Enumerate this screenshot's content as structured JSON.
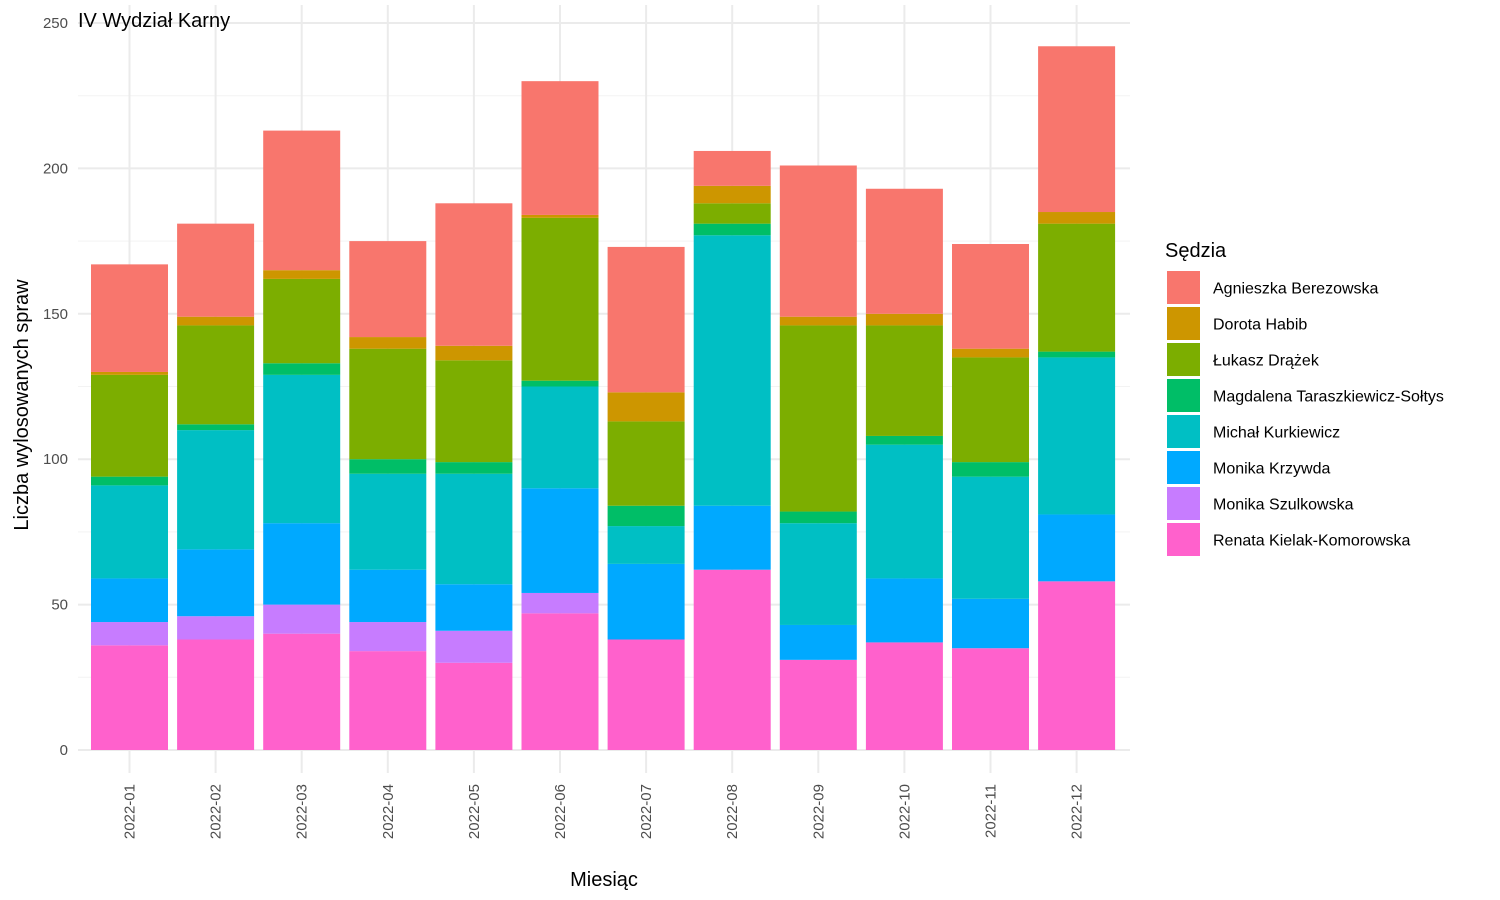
{
  "chart_data": {
    "type": "bar",
    "stacked": true,
    "title": "IV Wydział Karny",
    "xlabel": "Miesiąc",
    "ylabel": "Liczba wylosowanych spraw",
    "ylim": [
      0,
      250
    ],
    "yticks": [
      0,
      50,
      100,
      150,
      200,
      250
    ],
    "grid": true,
    "legend_title": "Sędzia",
    "legend_position": "right",
    "categories": [
      "2022-01",
      "2022-02",
      "2022-03",
      "2022-04",
      "2022-05",
      "2022-06",
      "2022-07",
      "2022-08",
      "2022-09",
      "2022-10",
      "2022-11",
      "2022-12"
    ],
    "series": [
      {
        "name": "Agnieszka Berezowska",
        "color": "#F8766D",
        "values": [
          37,
          32,
          48,
          33,
          49,
          46,
          50,
          12,
          52,
          43,
          36,
          57
        ]
      },
      {
        "name": "Dorota Habib",
        "color": "#CD9600",
        "values": [
          1,
          3,
          3,
          4,
          5,
          1,
          10,
          6,
          3,
          4,
          3,
          4
        ]
      },
      {
        "name": "Łukasz Drążek",
        "color": "#7CAE00",
        "values": [
          35,
          34,
          29,
          38,
          35,
          56,
          29,
          7,
          64,
          38,
          36,
          44
        ]
      },
      {
        "name": "Magdalena Taraszkiewicz-Sołtys",
        "color": "#00BE67",
        "values": [
          3,
          2,
          4,
          5,
          4,
          2,
          7,
          4,
          4,
          3,
          5,
          2
        ]
      },
      {
        "name": "Michał Kurkiewicz",
        "color": "#00BFC4",
        "values": [
          32,
          41,
          51,
          33,
          38,
          35,
          13,
          93,
          35,
          46,
          42,
          54
        ]
      },
      {
        "name": "Monika Krzywda",
        "color": "#00A9FF",
        "values": [
          15,
          23,
          28,
          18,
          16,
          36,
          26,
          22,
          12,
          22,
          17,
          23
        ]
      },
      {
        "name": "Monika Szulkowska",
        "color": "#C77CFF",
        "values": [
          8,
          8,
          10,
          10,
          11,
          7,
          0,
          0,
          0,
          0,
          0,
          0
        ]
      },
      {
        "name": "Renata Kielak-Komorowska",
        "color": "#FF61CC",
        "values": [
          36,
          38,
          40,
          34,
          30,
          47,
          38,
          62,
          31,
          37,
          35,
          58
        ]
      }
    ]
  }
}
